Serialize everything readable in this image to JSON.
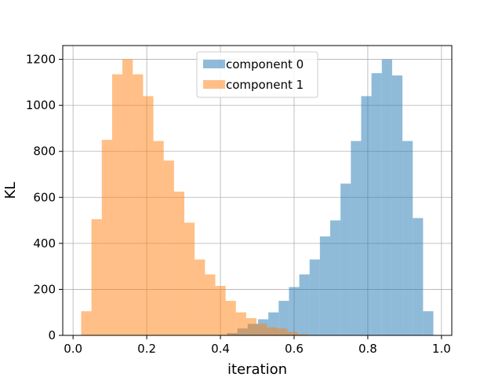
{
  "chart_data": {
    "type": "bar",
    "xlabel": "iteration",
    "ylabel": "KL",
    "xlim": [
      -0.028,
      1.028
    ],
    "ylim": [
      0,
      1260
    ],
    "xticks": [
      0.0,
      0.2,
      0.4,
      0.6,
      0.8,
      1.0
    ],
    "xtick_labels": [
      "0.0",
      "0.2",
      "0.4",
      "0.6",
      "0.8",
      "1.0"
    ],
    "yticks": [
      0,
      200,
      400,
      600,
      800,
      1000,
      1200
    ],
    "ytick_labels": [
      "0",
      "200",
      "400",
      "600",
      "800",
      "1000",
      "1200"
    ],
    "grid": true,
    "legend_position": "top-center",
    "bin_width": 0.028,
    "alpha": 0.5,
    "series": [
      {
        "name": "component 0",
        "color": "#1f77b4",
        "bin_starts": [
          0.418,
          0.446,
          0.474,
          0.502,
          0.53,
          0.558,
          0.586,
          0.614,
          0.642,
          0.67,
          0.698,
          0.726,
          0.754,
          0.782,
          0.81,
          0.838,
          0.866,
          0.894,
          0.922,
          0.95
        ],
        "values": [
          10,
          30,
          50,
          70,
          100,
          150,
          210,
          265,
          330,
          430,
          500,
          660,
          845,
          1040,
          1140,
          1200,
          1130,
          845,
          510,
          105
        ]
      },
      {
        "name": "component 1",
        "color": "#ff7f0e",
        "bin_starts": [
          0.022,
          0.05,
          0.078,
          0.106,
          0.134,
          0.162,
          0.19,
          0.218,
          0.246,
          0.274,
          0.302,
          0.33,
          0.358,
          0.386,
          0.414,
          0.442,
          0.47,
          0.498,
          0.526,
          0.554,
          0.582,
          0.61
        ],
        "values": [
          105,
          505,
          850,
          1135,
          1200,
          1135,
          1040,
          845,
          760,
          625,
          490,
          330,
          265,
          215,
          150,
          100,
          75,
          50,
          35,
          30,
          15,
          5
        ]
      }
    ]
  }
}
